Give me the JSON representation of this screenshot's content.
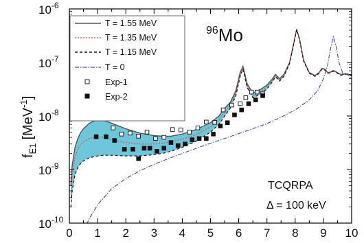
{
  "chart_data": {
    "type": "line",
    "title": "",
    "nucleus_label": {
      "mass": "96",
      "element": "Mo"
    },
    "xlabel": "",
    "ylabel": {
      "main": "f",
      "sub": "E1",
      "unit": "[MeV",
      "exp": "-1",
      "close": "]"
    },
    "xlim": [
      0,
      10
    ],
    "ylim": [
      1e-10,
      1e-06
    ],
    "yscale": "log",
    "x_ticks": [
      "0",
      "1",
      "2",
      "3",
      "4",
      "5",
      "6",
      "7",
      "8",
      "9",
      "10"
    ],
    "y_ticks": [
      {
        "base": "10",
        "exp": "-10"
      },
      {
        "base": "10",
        "exp": "-9"
      },
      {
        "base": "10",
        "exp": "-8"
      },
      {
        "base": "10",
        "exp": "-7"
      },
      {
        "base": "10",
        "exp": "-6"
      }
    ],
    "annotations": {
      "method": "TCQRPA",
      "delta": "Δ = 100 keV"
    },
    "colors": {
      "band": "#6ec6da",
      "t155": "#555555",
      "t135": "#e0443a",
      "t115": "#111111",
      "t0": "#3b4bb3",
      "exp1": "#222222",
      "exp2": "#111111"
    },
    "series": [
      {
        "name": "T = 1.55 MeV",
        "x": [
          0.05,
          0.1,
          0.2,
          0.3,
          0.4,
          0.5,
          0.7,
          0.9,
          1.0,
          1.2,
          1.5,
          2.0,
          2.5,
          3.0,
          3.3,
          3.6,
          4.0,
          4.5,
          5.0,
          5.3,
          5.5,
          5.7,
          5.9,
          6.05,
          6.15,
          6.3,
          6.5,
          6.8,
          7.0,
          7.2,
          7.3,
          7.45,
          7.6,
          7.8,
          7.95,
          8.05,
          8.15,
          8.3,
          8.5,
          8.7,
          8.85,
          8.95,
          9.05,
          9.15,
          9.25,
          9.35,
          9.45,
          9.6,
          9.8,
          10.0
        ],
        "y": [
          5e-10,
          1.2e-09,
          2.6e-09,
          3.8e-09,
          4.9e-09,
          5.8e-09,
          7.3e-09,
          8.2e-09,
          8.5e-09,
          8.4e-09,
          7.3e-09,
          5.8e-09,
          4.8e-09,
          4.3e-09,
          4.2e-09,
          4.2e-09,
          4.6e-09,
          5.6e-09,
          7.5e-09,
          1e-08,
          1.4e-08,
          1.8e-08,
          3e-08,
          6.5e-08,
          8.5e-08,
          4e-08,
          2.7e-08,
          3.2e-08,
          3.8e-08,
          5e-08,
          6e-08,
          5e-08,
          6e-08,
          1e-07,
          2.3e-07,
          4.2e-07,
          2.8e-07,
          1.1e-07,
          6.5e-08,
          5.7e-08,
          6.5e-08,
          7.8e-08,
          7.5e-08,
          6.5e-08,
          6.6e-08,
          7.1e-08,
          6.7e-08,
          6e-08,
          6.2e-08,
          5.8e-08
        ]
      },
      {
        "name": "T = 1.35 MeV",
        "x": [
          0.05,
          0.1,
          0.2,
          0.3,
          0.4,
          0.5,
          0.7,
          0.9,
          1.0,
          1.2,
          1.5,
          2.0,
          2.5,
          3.0,
          3.3,
          3.6,
          4.0,
          4.5,
          5.0,
          5.3,
          5.5,
          5.7,
          5.9,
          6.05,
          6.15,
          6.3,
          6.5,
          6.8,
          7.0,
          7.2,
          7.3,
          7.45,
          7.6,
          7.8,
          7.95,
          8.05,
          8.15,
          8.3,
          8.5,
          8.7,
          8.85,
          8.95,
          9.05,
          9.15,
          9.25,
          9.35,
          9.45,
          9.6,
          9.8,
          10.0
        ],
        "y": [
          3.5e-10,
          8e-10,
          1.7e-09,
          2.4e-09,
          2.9e-09,
          3.3e-09,
          3.8e-09,
          4e-09,
          4.1e-09,
          4e-09,
          3.6e-09,
          3.2e-09,
          3e-09,
          3e-09,
          3.1e-09,
          3.3e-09,
          3.7e-09,
          4.5e-09,
          6.3e-09,
          8.5e-09,
          1.2e-08,
          1.6e-08,
          2.7e-08,
          6e-08,
          8e-08,
          3.7e-08,
          2.4e-08,
          2.9e-08,
          3.5e-08,
          4.7e-08,
          5.7e-08,
          4.7e-08,
          5.7e-08,
          9.8e-08,
          2.3e-07,
          4.2e-07,
          2.8e-07,
          1.1e-07,
          6.4e-08,
          5.6e-08,
          6.4e-08,
          7.6e-08,
          7.3e-08,
          6.4e-08,
          6.5e-08,
          7e-08,
          6.6e-08,
          5.9e-08,
          6.1e-08,
          5.7e-08
        ]
      },
      {
        "name": "T = 1.15 MeV",
        "x": [
          0.05,
          0.1,
          0.2,
          0.3,
          0.4,
          0.5,
          0.7,
          0.9,
          1.0,
          1.2,
          1.5,
          2.0,
          2.5,
          3.0,
          3.3,
          3.6,
          4.0,
          4.5,
          5.0,
          5.3,
          5.5,
          5.7,
          5.9,
          6.05,
          6.15,
          6.3,
          6.5,
          6.8,
          7.0,
          7.2,
          7.3,
          7.45,
          7.6,
          7.8,
          7.95,
          8.05,
          8.15,
          8.3,
          8.5,
          8.7,
          8.85,
          8.95,
          9.05,
          9.15,
          9.25,
          9.35,
          9.45,
          9.6,
          9.8,
          10.0
        ],
        "y": [
          2e-10,
          4e-10,
          8e-10,
          1.1e-09,
          1.3e-09,
          1.45e-09,
          1.65e-09,
          1.75e-09,
          1.8e-09,
          1.85e-09,
          1.85e-09,
          1.8e-09,
          1.8e-09,
          1.9e-09,
          2e-09,
          2.2e-09,
          2.6e-09,
          3.4e-09,
          5e-09,
          7e-09,
          1e-08,
          1.4e-08,
          2.4e-08,
          5.5e-08,
          7.5e-08,
          3.4e-08,
          2.2e-08,
          2.6e-08,
          3.2e-08,
          4.4e-08,
          5.4e-08,
          4.5e-08,
          5.5e-08,
          9.5e-08,
          2.2e-07,
          4.1e-07,
          2.7e-07,
          1.05e-07,
          6.3e-08,
          5.5e-08,
          6.3e-08,
          7.5e-08,
          7.2e-08,
          6.3e-08,
          6.4e-08,
          6.9e-08,
          6.5e-08,
          5.8e-08,
          6e-08,
          5.6e-08
        ]
      },
      {
        "name": "T = 0",
        "x": [
          0.5,
          0.7,
          1.0,
          1.5,
          2.0,
          2.5,
          3.0,
          3.5,
          4.0,
          4.5,
          5.0,
          5.5,
          6.0,
          6.5,
          7.0,
          7.5,
          8.0,
          8.5,
          8.8,
          9.0,
          9.15,
          9.25,
          9.35,
          9.45,
          9.55,
          9.7,
          9.85,
          10.0
        ],
        "y": [
          7e-11,
          1.2e-10,
          2.2e-10,
          4.4e-10,
          6.8e-10,
          9.5e-10,
          1.25e-09,
          1.6e-09,
          2e-09,
          2.5e-09,
          3.1e-09,
          3.8e-09,
          4.7e-09,
          5.8e-09,
          7.2e-09,
          9.5e-09,
          1.3e-08,
          2e-08,
          3e-08,
          5e-08,
          9e-08,
          1.8e-07,
          3e-07,
          2e-07,
          1e-07,
          6e-08,
          6e-08,
          5e-08
        ]
      },
      {
        "name": "Exp-1",
        "x": [
          0.95,
          1.25,
          1.55,
          1.85,
          2.15,
          2.45,
          2.75,
          3.05,
          3.35,
          3.65,
          3.95,
          4.25,
          4.55,
          4.85,
          5.15,
          5.45,
          5.75,
          6.05,
          6.25,
          6.45,
          6.65,
          6.85
        ],
        "y": [
          9.5e-09,
          9.5e-09,
          6e-09,
          4.6e-09,
          4.8e-09,
          4.2e-09,
          5e-09,
          3.8e-09,
          4e-09,
          5.6e-09,
          5.5e-09,
          5e-09,
          6e-09,
          7.7e-09,
          7.6e-09,
          1.3e-08,
          1.6e-08,
          1.7e-08,
          2.2e-08,
          2.8e-08,
          2.8e-08,
          2.6e-08
        ]
      },
      {
        "name": "Exp-2",
        "x": [
          0.95,
          1.3,
          1.6,
          1.95,
          2.25,
          2.45,
          2.65,
          2.85,
          3.1,
          3.35,
          3.6,
          3.85,
          4.1,
          4.35,
          4.6,
          4.85,
          5.1,
          5.35,
          5.6,
          5.85,
          6.1,
          6.35,
          6.6,
          6.85
        ],
        "y": [
          4.1e-09,
          4.1e-09,
          3.5e-09,
          2.4e-09,
          2.4e-09,
          1.6e-09,
          2.5e-09,
          2.5e-09,
          2.2e-09,
          2.5e-09,
          3.2e-09,
          2.8e-09,
          3e-09,
          3.6e-09,
          3.8e-09,
          3.8e-09,
          4.6e-09,
          6.5e-09,
          7.5e-09,
          1.05e-08,
          1.3e-08,
          1.7e-08,
          2e-08,
          2.4e-08
        ]
      }
    ],
    "band": {
      "between": [
        "T = 1.15 MeV",
        "T = 1.55 MeV"
      ],
      "label": ""
    },
    "legend_position": "top-left",
    "grid": false
  }
}
